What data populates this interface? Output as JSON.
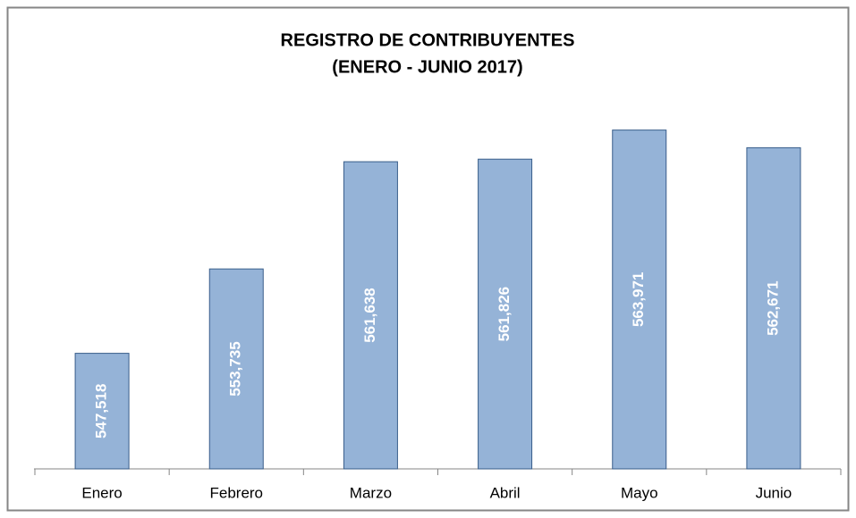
{
  "chart_data": {
    "type": "bar",
    "title": [
      "REGISTRO DE CONTRIBUYENTES",
      "(ENERO - JUNIO 2017)"
    ],
    "categories": [
      "Enero",
      "Febrero",
      "Marzo",
      "Abril",
      "Mayo",
      "Junio"
    ],
    "values": [
      547518,
      553735,
      561638,
      561826,
      563971,
      562671
    ],
    "value_labels": [
      "547,518",
      "553,735",
      "561,638",
      "561,826",
      "563,971",
      "562,671"
    ],
    "color": "#95b3d7",
    "ylim": [
      539000,
      565000
    ]
  }
}
